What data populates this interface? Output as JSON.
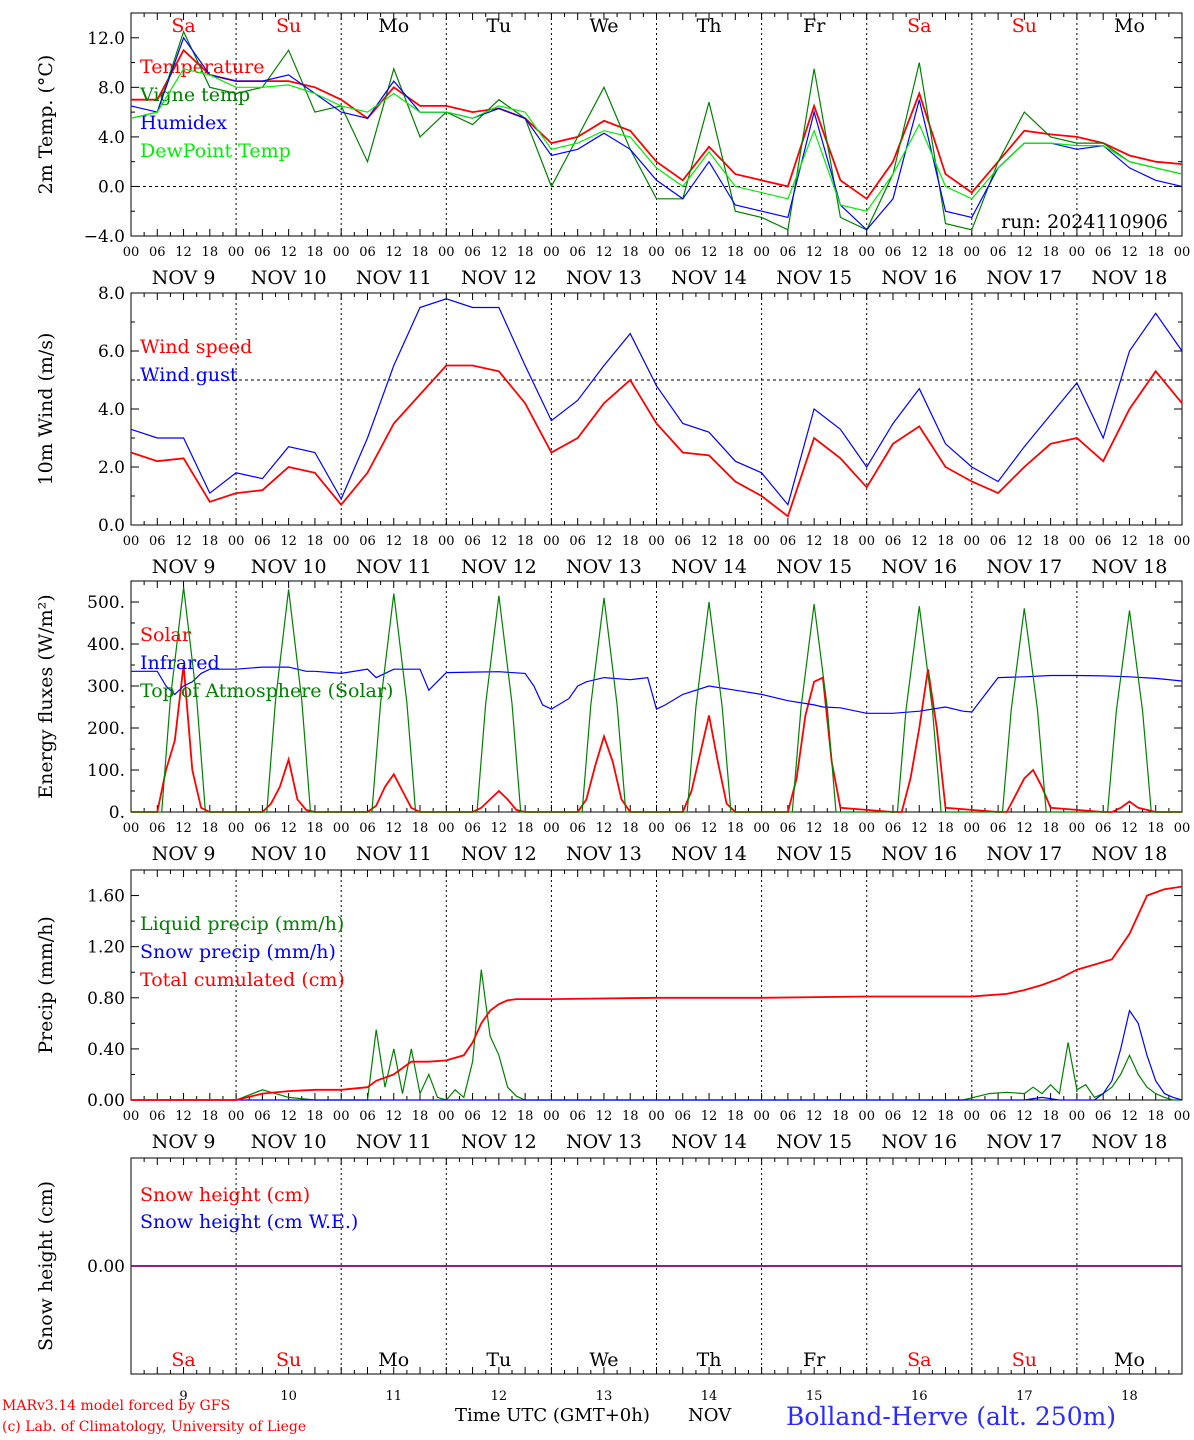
{
  "days": {
    "weekdays": [
      "Sa",
      "Su",
      "Mo",
      "Tu",
      "We",
      "Th",
      "Fr",
      "Sa",
      "Su",
      "Mo"
    ],
    "weekend_flags": [
      true,
      true,
      false,
      false,
      false,
      false,
      false,
      true,
      true,
      false
    ],
    "date_labels": [
      "NOV  9",
      "NOV 10",
      "NOV 11",
      "NOV 12",
      "NOV 13",
      "NOV 14",
      "NOV 15",
      "NOV 16",
      "NOV 17",
      "NOV 18"
    ],
    "day_numbers": [
      "9",
      "10",
      "11",
      "12",
      "13",
      "14",
      "15",
      "16",
      "17",
      "18"
    ],
    "hour_ticks": [
      "00",
      "06",
      "12",
      "18"
    ],
    "hour_end": "00"
  },
  "colors": {
    "red": "#ff0000",
    "green": "#008000",
    "blue": "#0000ff",
    "light_green": "#00ee00",
    "purple": "#7f007f",
    "weekend": "#ff0000",
    "weekday": "#000000"
  },
  "footer": {
    "model": "MARv3.14 model forced by GFS",
    "lab": "(c) Lab. of Climatology, University of Liege",
    "time_label": "Time UTC (GMT+0h)",
    "time_unit": "NOV",
    "station": "Bolland-Herve (alt. 250m)"
  },
  "chart_data": [
    {
      "type": "line",
      "ylabel": "2m Temp. (°C)",
      "ylim": [
        -4,
        14
      ],
      "yticks": [
        -4,
        0,
        4,
        8,
        12
      ],
      "ytick_labels": [
        "−4.0",
        "0.0",
        "4.0",
        "8.0",
        "12.0"
      ],
      "ref_line": 0,
      "annotation": "run: 2024110906",
      "x_unit": "hours since Nov 9 00 UTC",
      "x": [
        0,
        6,
        12,
        18,
        24,
        30,
        36,
        42,
        48,
        54,
        60,
        66,
        72,
        78,
        84,
        90,
        96,
        102,
        108,
        114,
        120,
        126,
        132,
        138,
        144,
        150,
        156,
        162,
        168,
        174,
        180,
        186,
        192,
        198,
        204,
        210,
        216,
        222,
        228,
        234,
        240
      ],
      "series": [
        {
          "name": "Temperature",
          "color": "red",
          "values": [
            7,
            7,
            11,
            9,
            8.5,
            8.5,
            8.5,
            8,
            7,
            5.5,
            8,
            6.5,
            6.5,
            6,
            6.3,
            5.5,
            3.5,
            4,
            5.3,
            4.5,
            2,
            0.5,
            3.2,
            1,
            0.5,
            0,
            6.5,
            0.5,
            -1,
            2,
            7.5,
            1,
            -0.5,
            2,
            4.5,
            4.2,
            4,
            3.5,
            2.5,
            2,
            1.8
          ]
        },
        {
          "name": "Vigne temp",
          "color": "green",
          "values": [
            5.5,
            6,
            12.5,
            8,
            7.5,
            8,
            11,
            6,
            6.5,
            2,
            9.5,
            4,
            6,
            5,
            7,
            5.5,
            0,
            4,
            8,
            3,
            -1,
            -1,
            6.8,
            -2,
            -2.5,
            -3.5,
            9.5,
            -2.5,
            -3.5,
            1,
            10,
            -3,
            -3.5,
            2,
            6,
            4,
            3.5,
            3.5,
            2,
            1.5,
            1
          ]
        },
        {
          "name": "Humidex",
          "color": "blue",
          "values": [
            6.5,
            6,
            12,
            9,
            8.5,
            8.5,
            9,
            7.5,
            6,
            5.5,
            8.5,
            6,
            6,
            5.5,
            6.3,
            5.5,
            2.5,
            3,
            4.3,
            3,
            0.5,
            -1,
            2,
            -1.5,
            -2,
            -2.5,
            6,
            -1.5,
            -3.5,
            -1,
            7,
            -2,
            -2.5,
            1.5,
            3.5,
            3.5,
            3,
            3.3,
            1.5,
            0.5,
            0
          ]
        },
        {
          "name": "DewPoint Temp",
          "color": "light_green",
          "values": [
            5.5,
            6,
            9.5,
            9,
            8,
            8,
            8.2,
            7.5,
            6.5,
            6,
            7.5,
            6,
            6,
            5.5,
            6.5,
            6,
            3,
            3.5,
            4.5,
            4,
            1.5,
            0,
            2.8,
            0,
            -0.5,
            -1,
            4.5,
            -1.5,
            -2,
            1,
            5,
            0,
            -1,
            1.5,
            3.5,
            3.5,
            3.3,
            3.3,
            2,
            1.5,
            1
          ]
        }
      ]
    },
    {
      "type": "line",
      "ylabel": "10m Wind (m/s)",
      "ylim": [
        0,
        8
      ],
      "yticks": [
        0,
        2,
        4,
        6,
        8
      ],
      "ytick_labels": [
        "0.0",
        "2.0",
        "4.0",
        "6.0",
        "8.0"
      ],
      "ref_line": 5,
      "x_unit": "hours since Nov 9 00 UTC",
      "x": [
        0,
        6,
        12,
        18,
        24,
        30,
        36,
        42,
        48,
        54,
        60,
        66,
        72,
        78,
        84,
        90,
        96,
        102,
        108,
        114,
        120,
        126,
        132,
        138,
        144,
        150,
        156,
        162,
        168,
        174,
        180,
        186,
        192,
        198,
        204,
        210,
        216,
        222,
        228,
        234,
        240
      ],
      "series": [
        {
          "name": "Wind speed",
          "color": "red",
          "values": [
            2.5,
            2.2,
            2.3,
            0.8,
            1.1,
            1.2,
            2,
            1.8,
            0.7,
            1.8,
            3.5,
            4.5,
            5.5,
            5.5,
            5.3,
            4.2,
            2.5,
            3,
            4.2,
            5,
            3.5,
            2.5,
            2.4,
            1.5,
            1,
            0.3,
            3,
            2.3,
            1.3,
            2.8,
            3.4,
            2,
            1.5,
            1.1,
            2,
            2.8,
            3,
            2.2,
            4,
            5.3,
            4.2
          ]
        },
        {
          "name": "Wind gust",
          "color": "blue",
          "values": [
            3.3,
            3,
            3,
            1.1,
            1.8,
            1.6,
            2.7,
            2.5,
            0.9,
            3,
            5.5,
            7.5,
            7.8,
            7.5,
            7.5,
            5.5,
            3.6,
            4.3,
            5.5,
            6.6,
            4.8,
            3.5,
            3.2,
            2.2,
            1.8,
            0.7,
            4,
            3.3,
            2,
            3.5,
            4.7,
            2.8,
            2,
            1.5,
            2.7,
            3.8,
            4.9,
            3,
            6,
            7.3,
            6
          ]
        }
      ]
    },
    {
      "type": "line",
      "ylabel": "Energy fluxes (W/m²)",
      "ylim": [
        0,
        550
      ],
      "yticks": [
        0,
        100,
        200,
        300,
        400,
        500
      ],
      "ytick_labels": [
        "0.",
        "100.",
        "200.",
        "300.",
        "400.",
        "500."
      ],
      "x_unit": "hours since Nov 9 00 UTC",
      "series": [
        {
          "name": "Solar",
          "color": "red",
          "x": [
            0,
            6,
            8,
            10,
            12,
            14,
            16,
            18,
            30,
            32,
            34,
            36,
            38,
            40,
            42,
            54,
            56,
            58,
            60,
            62,
            64,
            66,
            78,
            80,
            82,
            84,
            86,
            88,
            90,
            102,
            104,
            106,
            108,
            110,
            112,
            114,
            126,
            128,
            130,
            132,
            134,
            136,
            138,
            150,
            152,
            154,
            156,
            158,
            160,
            162,
            174,
            176,
            178,
            180,
            182,
            184,
            186,
            198,
            200,
            202,
            204,
            206,
            208,
            210,
            222,
            224,
            226,
            228,
            230,
            232,
            234,
            240
          ],
          "values": [
            0,
            0,
            100,
            170,
            350,
            100,
            10,
            0,
            0,
            20,
            60,
            125,
            30,
            5,
            0,
            0,
            15,
            60,
            90,
            50,
            10,
            0,
            0,
            10,
            30,
            50,
            30,
            5,
            0,
            0,
            30,
            110,
            180,
            120,
            30,
            0,
            0,
            50,
            140,
            230,
            120,
            20,
            0,
            0,
            80,
            230,
            310,
            320,
            120,
            10,
            0,
            0,
            80,
            200,
            340,
            200,
            10,
            0,
            0,
            40,
            80,
            100,
            60,
            10,
            0,
            0,
            10,
            25,
            10,
            5,
            0,
            0
          ]
        },
        {
          "name": "Infrared",
          "color": "blue",
          "x": [
            0,
            6,
            8,
            10,
            12,
            14,
            16,
            18,
            24,
            30,
            36,
            40,
            42,
            48,
            54,
            56,
            60,
            66,
            68,
            72,
            78,
            84,
            90,
            92,
            94,
            96,
            100,
            102,
            104,
            108,
            114,
            118,
            120,
            122,
            126,
            132,
            138,
            144,
            150,
            156,
            158,
            162,
            168,
            174,
            180,
            186,
            190,
            192,
            198,
            204,
            210,
            216,
            222,
            228,
            234,
            240
          ],
          "values": [
            335,
            335,
            300,
            280,
            300,
            310,
            330,
            340,
            340,
            345,
            345,
            335,
            335,
            330,
            340,
            320,
            340,
            340,
            290,
            332,
            333,
            334,
            330,
            300,
            255,
            245,
            270,
            300,
            310,
            320,
            315,
            320,
            245,
            255,
            280,
            300,
            290,
            280,
            265,
            255,
            250,
            248,
            235,
            235,
            240,
            250,
            240,
            238,
            320,
            322,
            325,
            325,
            324,
            322,
            318,
            312
          ]
        },
        {
          "name": "Top of Atmosphere (Solar)",
          "color": "green",
          "x": [
            0,
            7,
            9,
            12,
            15,
            17,
            24,
            31,
            33,
            36,
            39,
            41,
            48,
            55,
            57,
            60,
            63,
            65,
            72,
            79,
            81,
            84,
            87,
            89,
            96,
            103,
            105,
            108,
            111,
            113,
            120,
            127,
            129,
            132,
            135,
            137,
            144,
            151,
            153,
            156,
            159,
            161,
            168,
            175,
            177,
            180,
            183,
            185,
            192,
            199,
            201,
            204,
            207,
            209,
            216,
            223,
            225,
            228,
            231,
            233,
            240
          ],
          "values": [
            0,
            0,
            270,
            535,
            270,
            0,
            0,
            0,
            265,
            530,
            265,
            0,
            0,
            0,
            260,
            520,
            260,
            0,
            0,
            0,
            258,
            515,
            258,
            0,
            0,
            0,
            255,
            510,
            255,
            0,
            0,
            0,
            250,
            500,
            250,
            0,
            0,
            0,
            248,
            495,
            248,
            0,
            0,
            0,
            245,
            490,
            245,
            0,
            0,
            0,
            243,
            485,
            243,
            0,
            0,
            0,
            240,
            480,
            240,
            0,
            0
          ]
        }
      ]
    },
    {
      "type": "line",
      "ylabel": "Precip (mm/h)",
      "ylim": [
        0,
        1.8
      ],
      "yticks": [
        0,
        0.4,
        0.8,
        1.2,
        1.6
      ],
      "ytick_labels": [
        "0.00",
        "0.40",
        "0.80",
        "1.20",
        "1.60"
      ],
      "x_unit": "hours since Nov 9 00 UTC",
      "series": [
        {
          "name": "Liquid precip (mm/h)",
          "color": "green",
          "x": [
            0,
            24,
            30,
            36,
            42,
            48,
            54,
            56,
            58,
            60,
            62,
            64,
            66,
            68,
            70,
            72,
            74,
            76,
            78,
            80,
            82,
            84,
            86,
            88,
            90,
            96,
            120,
            144,
            168,
            190,
            196,
            200,
            204,
            206,
            208,
            210,
            212,
            214,
            216,
            218,
            220,
            222,
            224,
            226,
            228,
            230,
            232,
            234,
            236,
            238,
            240
          ],
          "values": [
            0,
            0,
            0.08,
            0.02,
            0,
            0,
            0,
            0.55,
            0.1,
            0.4,
            0.05,
            0.4,
            0.05,
            0.2,
            0.02,
            0,
            0.08,
            0.02,
            0.3,
            1.02,
            0.5,
            0.35,
            0.1,
            0.03,
            0,
            0,
            0,
            0,
            0,
            0,
            0.05,
            0.06,
            0.05,
            0.1,
            0.05,
            0.12,
            0.05,
            0.45,
            0.08,
            0.12,
            0.02,
            0.05,
            0.1,
            0.2,
            0.35,
            0.2,
            0.1,
            0.05,
            0.02,
            0,
            0
          ]
        },
        {
          "name": "Snow precip (mm/h)",
          "color": "blue",
          "x": [
            0,
            200,
            204,
            208,
            212,
            216,
            220,
            222,
            224,
            226,
            228,
            230,
            232,
            234,
            236,
            238,
            240
          ],
          "values": [
            0,
            0,
            0,
            0.02,
            0,
            0,
            0,
            0.05,
            0.15,
            0.4,
            0.7,
            0.6,
            0.35,
            0.15,
            0.05,
            0.02,
            0
          ]
        },
        {
          "name": "Total cumulated (cm)",
          "color": "red",
          "x": [
            0,
            24,
            30,
            36,
            42,
            48,
            54,
            56,
            60,
            64,
            66,
            68,
            72,
            76,
            78,
            80,
            82,
            84,
            86,
            88,
            90,
            96,
            120,
            144,
            168,
            192,
            196,
            200,
            204,
            208,
            212,
            216,
            220,
            224,
            228,
            232,
            236,
            240
          ],
          "values": [
            0,
            0,
            0.05,
            0.07,
            0.08,
            0.08,
            0.1,
            0.15,
            0.2,
            0.3,
            0.3,
            0.3,
            0.31,
            0.35,
            0.45,
            0.6,
            0.7,
            0.75,
            0.78,
            0.79,
            0.79,
            0.79,
            0.8,
            0.8,
            0.81,
            0.81,
            0.82,
            0.83,
            0.86,
            0.9,
            0.95,
            1.02,
            1.06,
            1.1,
            1.3,
            1.6,
            1.65,
            1.67
          ]
        }
      ]
    },
    {
      "type": "line",
      "ylabel": "Snow height (cm)",
      "ylim": [
        -1,
        1
      ],
      "yticks": [
        0
      ],
      "ytick_labels": [
        "0.00"
      ],
      "x_unit": "hours since Nov 9 00 UTC",
      "x": [
        0,
        240
      ],
      "series": [
        {
          "name": "Snow height (cm)",
          "color": "red",
          "values": [
            0,
            0
          ]
        },
        {
          "name": "Snow height (cm W.E.)",
          "color": "blue",
          "values": [
            0,
            0
          ]
        }
      ]
    }
  ]
}
